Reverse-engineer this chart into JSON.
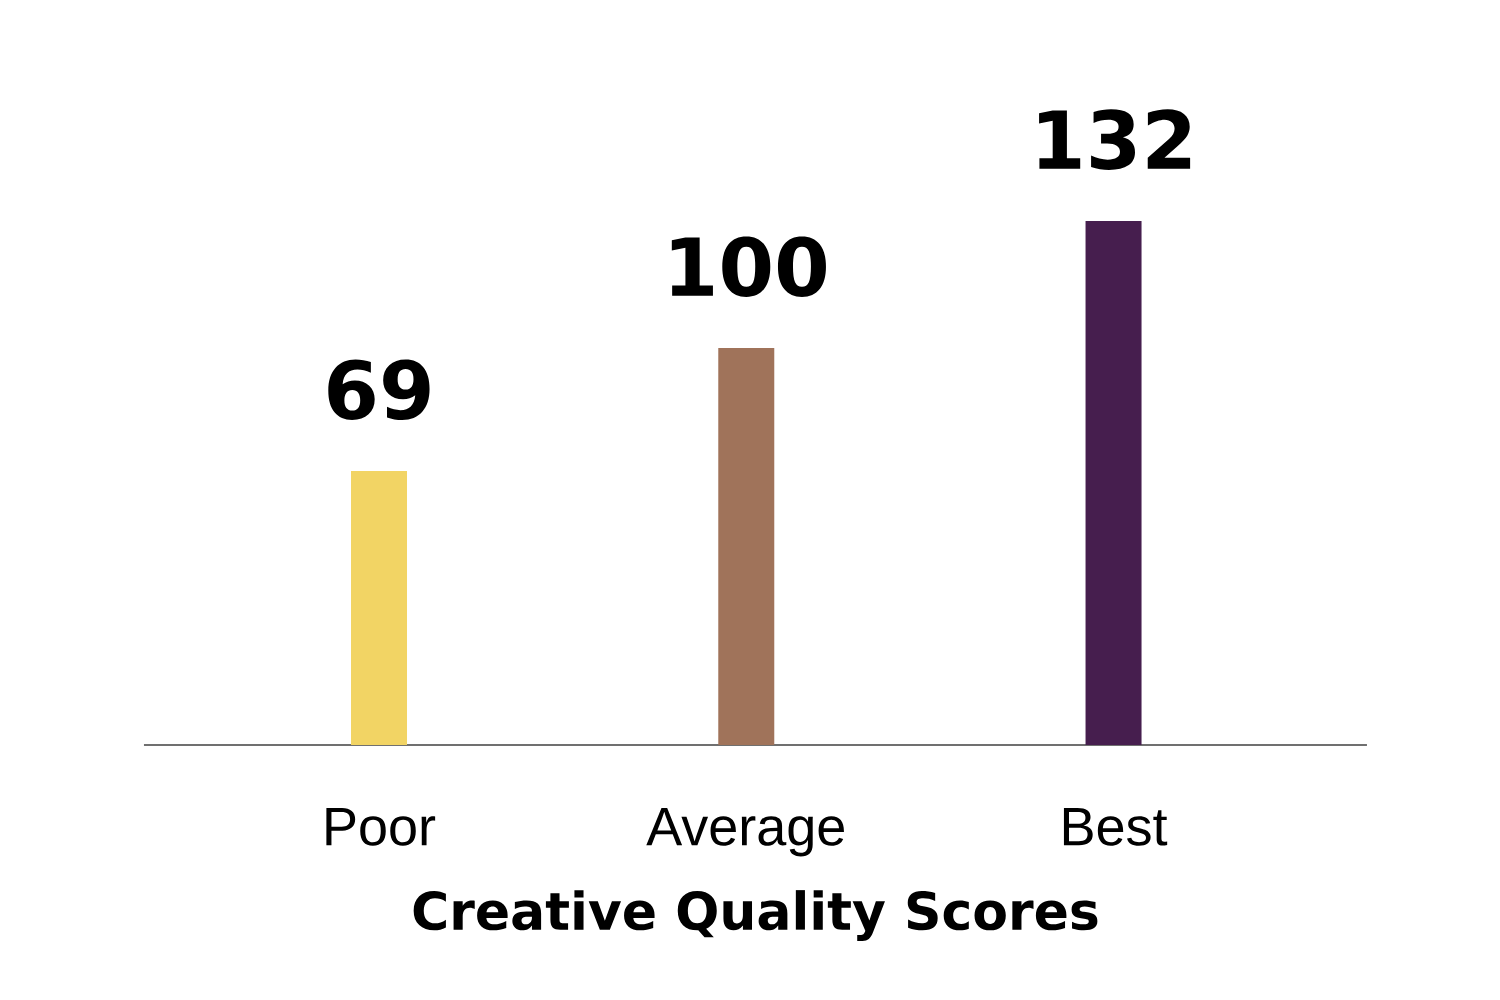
{
  "chart_data": {
    "type": "bar",
    "xlabel": "**Creative Quality Scores**",
    "categories": [
      "Poor",
      "Average",
      "Best"
    ],
    "values": [
      69,
      100,
      132
    ],
    "colors": [
      "#f2d464",
      "#a0735a",
      "#461e4e"
    ],
    "data_labels": true
  }
}
